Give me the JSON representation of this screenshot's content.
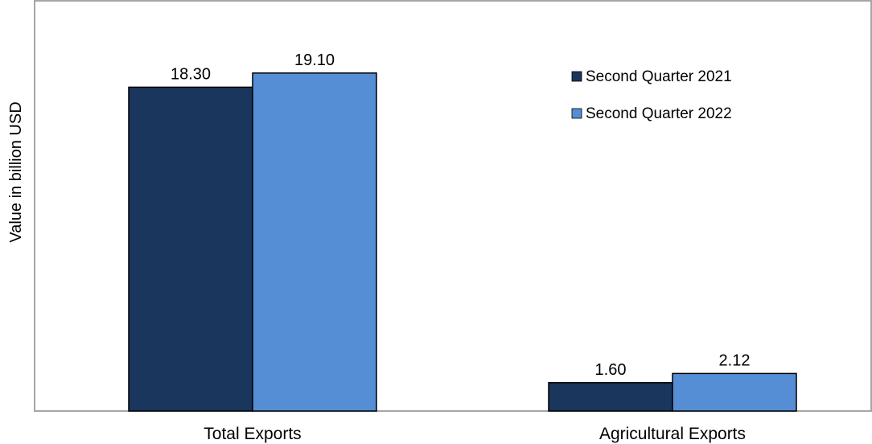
{
  "chart_data": {
    "type": "bar",
    "title": "",
    "xlabel": "",
    "ylabel": "Value in billion USD",
    "categories": [
      "Total Exports",
      "Agricultural Exports"
    ],
    "series": [
      {
        "name": "Second Quarter 2021",
        "values": [
          18.3,
          1.6
        ],
        "labels": [
          "18.30",
          "1.60"
        ],
        "color": "#1b365d"
      },
      {
        "name": "Second Quarter 2022",
        "values": [
          19.1,
          2.12
        ],
        "labels": [
          "19.10",
          "2.12"
        ],
        "color": "#558ed5"
      }
    ],
    "ylim": [
      0,
      22.35
    ],
    "grid": false,
    "legend": "top-right",
    "axis_color": "#a6a6a6",
    "border_color": "#a6a6a6"
  }
}
